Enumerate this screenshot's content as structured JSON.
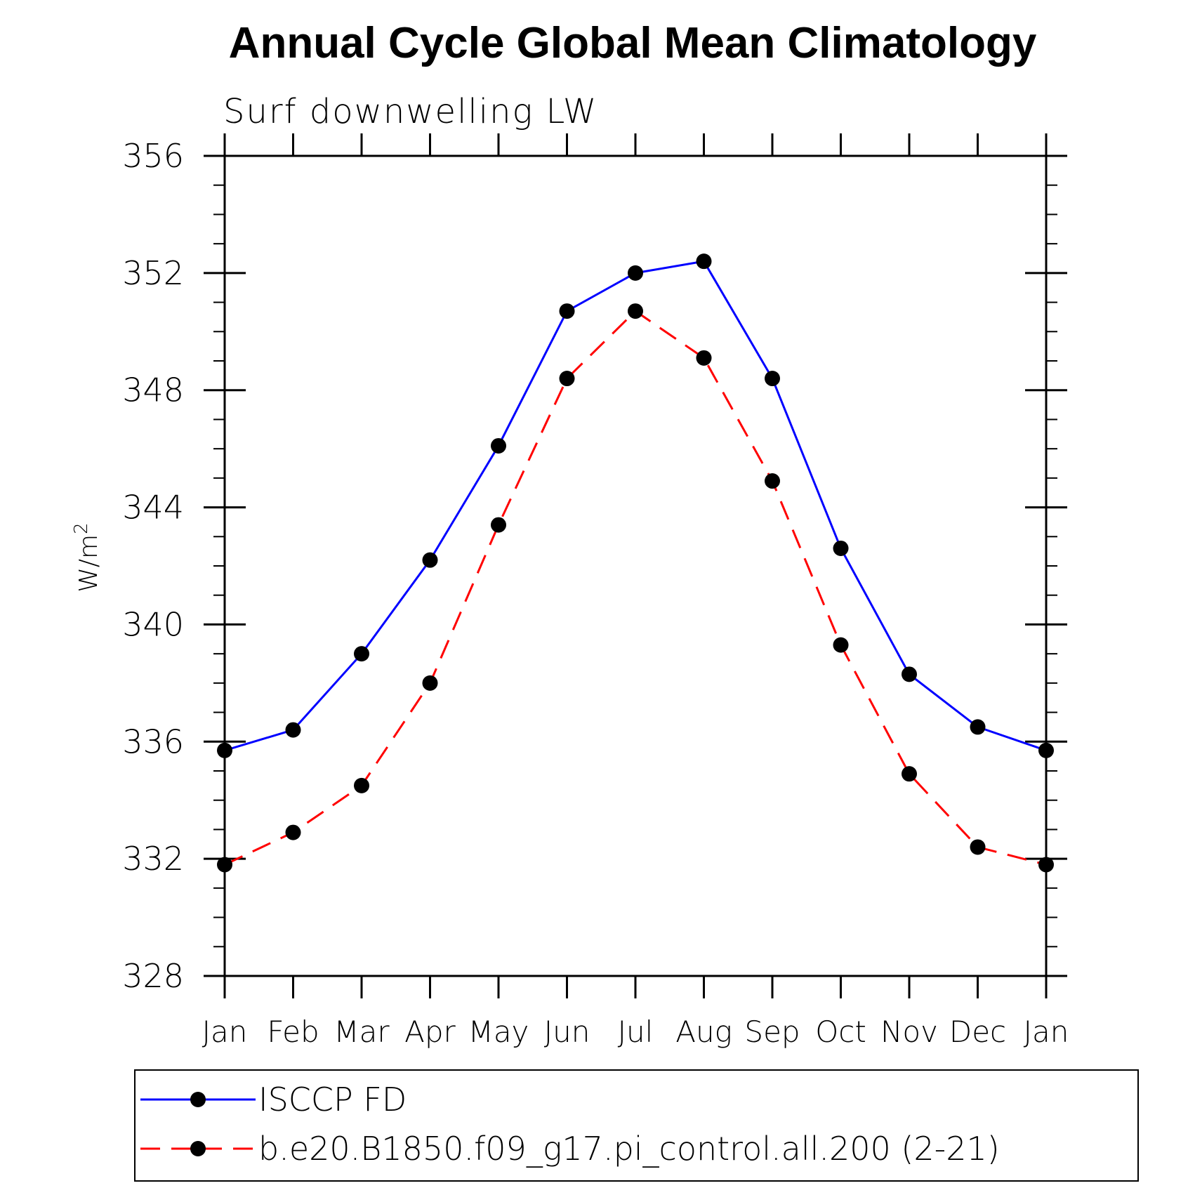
{
  "chart_data": {
    "type": "line",
    "title": "Annual Cycle Global Mean Climatology",
    "subtitle": "Surf downwelling LW",
    "ylabel": "W/m",
    "ylabel_sup": "2",
    "xlabel": "",
    "categories": [
      "Jan",
      "Feb",
      "Mar",
      "Apr",
      "May",
      "Jun",
      "Jul",
      "Aug",
      "Sep",
      "Oct",
      "Nov",
      "Dec",
      "Jan"
    ],
    "ylim": [
      328,
      356
    ],
    "yticks": [
      328,
      332,
      336,
      340,
      344,
      348,
      352,
      356
    ],
    "series": [
      {
        "name": "ISCCP FD",
        "color": "#0000ff",
        "line_style": "solid",
        "marker": "filled-circle",
        "values": [
          335.7,
          336.4,
          339.0,
          342.2,
          346.1,
          350.7,
          352.0,
          352.4,
          348.4,
          342.6,
          338.3,
          336.5,
          335.7
        ]
      },
      {
        "name": "b.e20.B1850.f09_g17.pi_control.all.200 (2-21)",
        "color": "#ff0000",
        "line_style": "dashed",
        "marker": "filled-circle",
        "values": [
          331.8,
          332.9,
          334.5,
          338.0,
          343.4,
          348.4,
          350.7,
          349.1,
          344.9,
          339.3,
          334.9,
          332.4,
          331.8
        ]
      }
    ],
    "grid": false,
    "legend_position": "bottom"
  }
}
